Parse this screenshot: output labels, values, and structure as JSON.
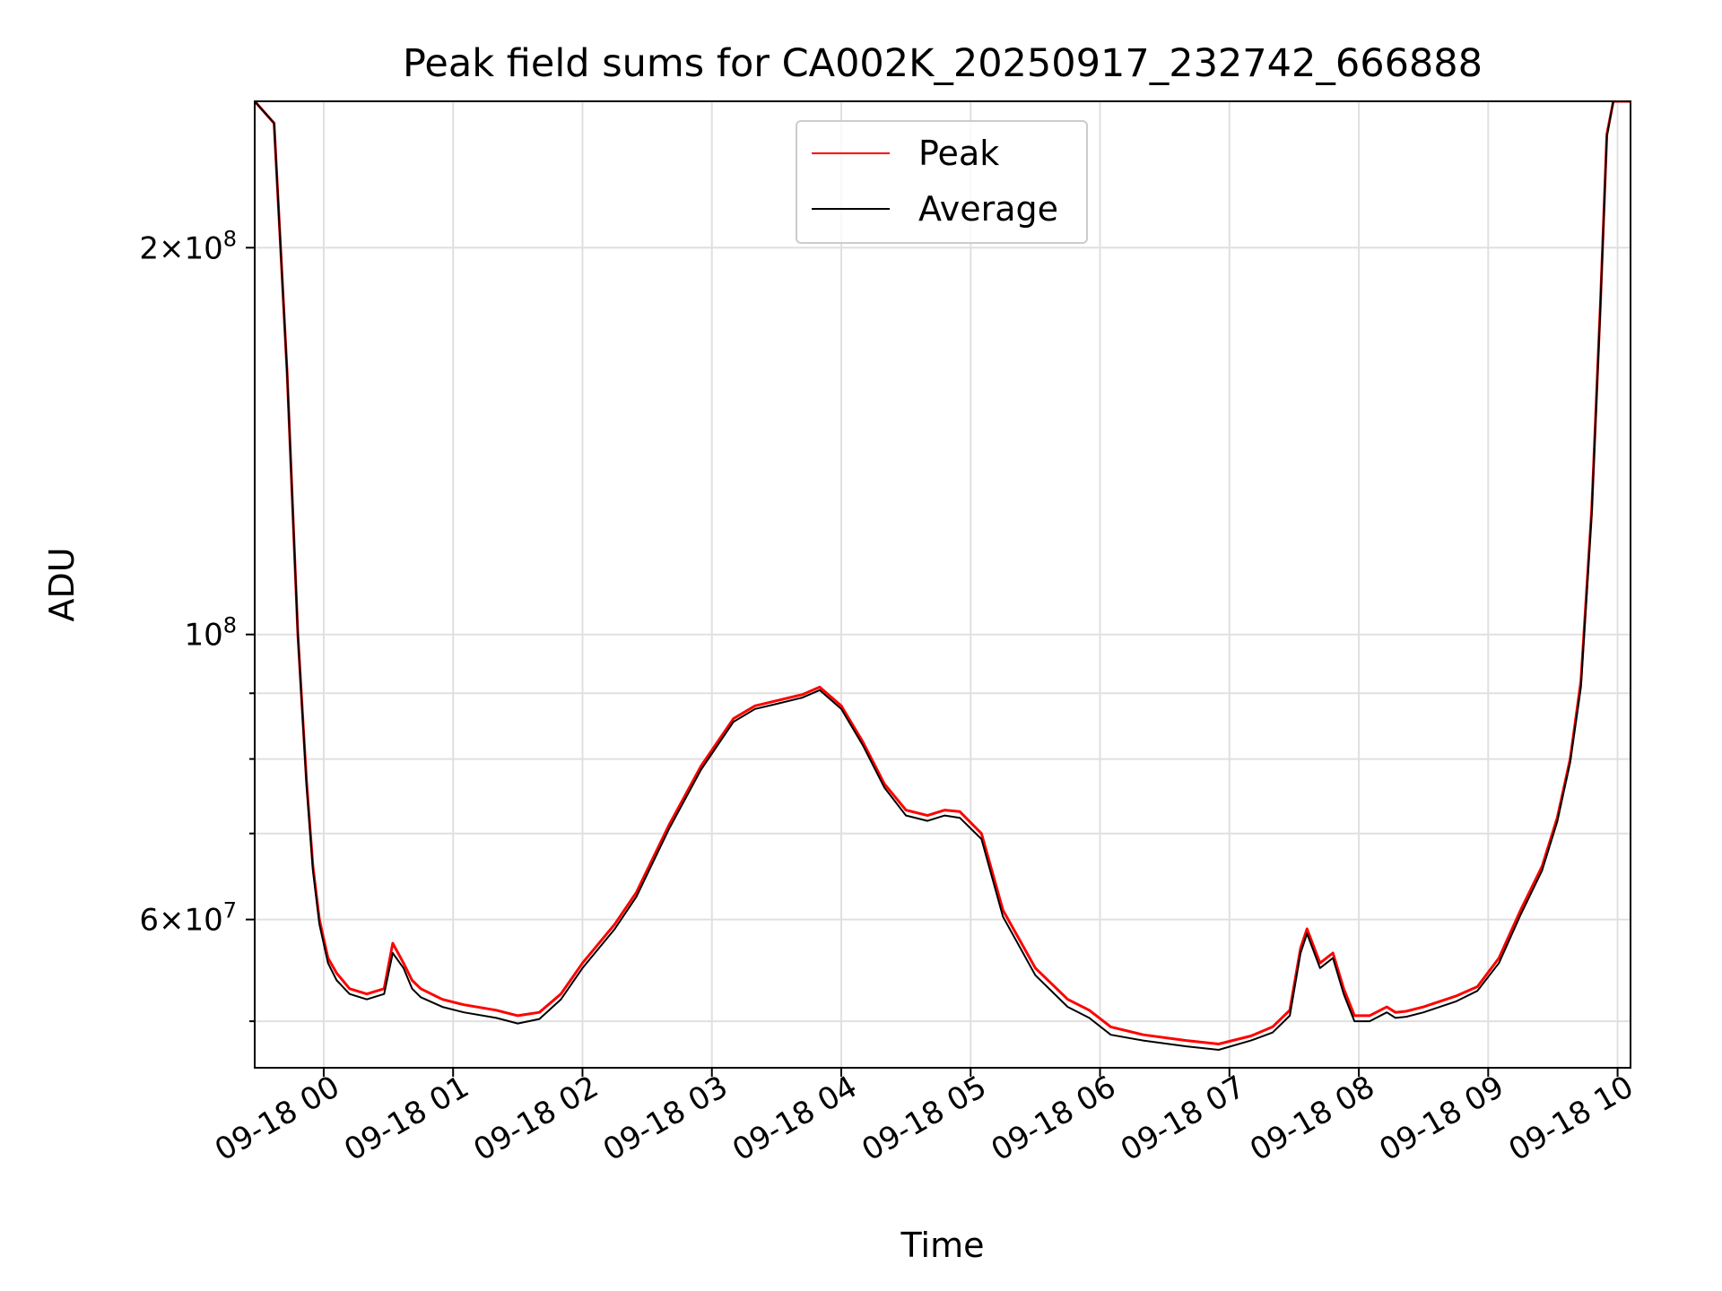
{
  "chart_data": {
    "type": "line",
    "title": "Peak field sums for CA002K_20250917_232742_666888",
    "xlabel": "Time",
    "ylabel": "ADU",
    "yscale": "log",
    "ylim": [
      46000000,
      260000000
    ],
    "xlim": [
      "2025-09-17 23:28",
      "2025-09-18 10:06"
    ],
    "grid": true,
    "legend_position": "upper center",
    "x_ticks": [
      {
        "x": "2025-09-18 00:00",
        "label": "09-18 00"
      },
      {
        "x": "2025-09-18 01:00",
        "label": "09-18 01"
      },
      {
        "x": "2025-09-18 02:00",
        "label": "09-18 02"
      },
      {
        "x": "2025-09-18 03:00",
        "label": "09-18 03"
      },
      {
        "x": "2025-09-18 04:00",
        "label": "09-18 04"
      },
      {
        "x": "2025-09-18 05:00",
        "label": "09-18 05"
      },
      {
        "x": "2025-09-18 06:00",
        "label": "09-18 06"
      },
      {
        "x": "2025-09-18 07:00",
        "label": "09-18 07"
      },
      {
        "x": "2025-09-18 08:00",
        "label": "09-18 08"
      },
      {
        "x": "2025-09-18 09:00",
        "label": "09-18 09"
      },
      {
        "x": "2025-09-18 10:00",
        "label": "09-18 10"
      }
    ],
    "y_ticks_major": [
      {
        "value": 60000000,
        "mantissa": "6",
        "exponent": "7"
      },
      {
        "value": 100000000,
        "mantissa": "",
        "exponent": "8"
      },
      {
        "value": 200000000,
        "mantissa": "2",
        "exponent": "8"
      }
    ],
    "y_ticks_minor": [
      50000000,
      70000000,
      80000000,
      90000000
    ],
    "x": [
      "2025-09-17 23:28",
      "2025-09-17 23:37",
      "2025-09-17 23:43",
      "2025-09-17 23:48",
      "2025-09-17 23:52",
      "2025-09-17 23:55",
      "2025-09-17 23:58",
      "2025-09-18 00:02",
      "2025-09-18 00:06",
      "2025-09-18 00:12",
      "2025-09-18 00:20",
      "2025-09-18 00:28",
      "2025-09-18 00:32",
      "2025-09-18 00:37",
      "2025-09-18 00:41",
      "2025-09-18 00:45",
      "2025-09-18 00:55",
      "2025-09-18 01:05",
      "2025-09-18 01:20",
      "2025-09-18 01:30",
      "2025-09-18 01:40",
      "2025-09-18 01:50",
      "2025-09-18 02:00",
      "2025-09-18 02:15",
      "2025-09-18 02:25",
      "2025-09-18 02:40",
      "2025-09-18 02:55",
      "2025-09-18 03:10",
      "2025-09-18 03:20",
      "2025-09-18 03:30",
      "2025-09-18 03:42",
      "2025-09-18 03:50",
      "2025-09-18 04:00",
      "2025-09-18 04:10",
      "2025-09-18 04:20",
      "2025-09-18 04:30",
      "2025-09-18 04:40",
      "2025-09-18 04:48",
      "2025-09-18 04:55",
      "2025-09-18 05:05",
      "2025-09-18 05:15",
      "2025-09-18 05:30",
      "2025-09-18 05:45",
      "2025-09-18 05:55",
      "2025-09-18 06:05",
      "2025-09-18 06:20",
      "2025-09-18 06:40",
      "2025-09-18 06:55",
      "2025-09-18 07:10",
      "2025-09-18 07:20",
      "2025-09-18 07:28",
      "2025-09-18 07:33",
      "2025-09-18 07:36",
      "2025-09-18 07:42",
      "2025-09-18 07:48",
      "2025-09-18 07:53",
      "2025-09-18 07:58",
      "2025-09-18 08:05",
      "2025-09-18 08:13",
      "2025-09-18 08:17",
      "2025-09-18 08:22",
      "2025-09-18 08:30",
      "2025-09-18 08:45",
      "2025-09-18 08:55",
      "2025-09-18 09:05",
      "2025-09-18 09:15",
      "2025-09-18 09:25",
      "2025-09-18 09:32",
      "2025-09-18 09:38",
      "2025-09-18 09:43",
      "2025-09-18 09:48",
      "2025-09-18 09:52",
      "2025-09-18 09:55",
      "2025-09-18 09:58",
      "2025-09-18 10:06"
    ],
    "series": [
      {
        "name": "Peak",
        "color": "#ff0000",
        "values": [
          260000000,
          250000000,
          160000000,
          100000000,
          77000000,
          66000000,
          60000000,
          56000000,
          54500000,
          53000000,
          52500000,
          53000000,
          57500000,
          55500000,
          53800000,
          53000000,
          52000000,
          51500000,
          51000000,
          50500000,
          50800000,
          52500000,
          55500000,
          59500000,
          63000000,
          71000000,
          79000000,
          86000000,
          88000000,
          88800000,
          89800000,
          91000000,
          88000000,
          82500000,
          76500000,
          73000000,
          72300000,
          73000000,
          72800000,
          70000000,
          61000000,
          55000000,
          52000000,
          51000000,
          49500000,
          48800000,
          48300000,
          48000000,
          48700000,
          49500000,
          51000000,
          57000000,
          59000000,
          55500000,
          56500000,
          53000000,
          50500000,
          50500000,
          51300000,
          50800000,
          50900000,
          51300000,
          52300000,
          53200000,
          56000000,
          61000000,
          66000000,
          72000000,
          80000000,
          92000000,
          125000000,
          180000000,
          245000000,
          260000000,
          260000000
        ]
      },
      {
        "name": "Average",
        "color": "#000000",
        "values": [
          260000000,
          250000000,
          160000000,
          100000000,
          76500000,
          65500000,
          59500000,
          55500000,
          53800000,
          52500000,
          52000000,
          52500000,
          56500000,
          55000000,
          53000000,
          52200000,
          51300000,
          50800000,
          50300000,
          49800000,
          50200000,
          52000000,
          55000000,
          59000000,
          62500000,
          70500000,
          78500000,
          85500000,
          87500000,
          88300000,
          89300000,
          90500000,
          87500000,
          82000000,
          76000000,
          72300000,
          71600000,
          72300000,
          72000000,
          69300000,
          60300000,
          54300000,
          51300000,
          50300000,
          48800000,
          48300000,
          47800000,
          47500000,
          48300000,
          49000000,
          50500000,
          56500000,
          58500000,
          55000000,
          56000000,
          52500000,
          50000000,
          50000000,
          50800000,
          50300000,
          50400000,
          50800000,
          51800000,
          52800000,
          55500000,
          60500000,
          65500000,
          71500000,
          79500000,
          91000000,
          124000000,
          179000000,
          244000000,
          260000000,
          260000000
        ]
      }
    ]
  }
}
